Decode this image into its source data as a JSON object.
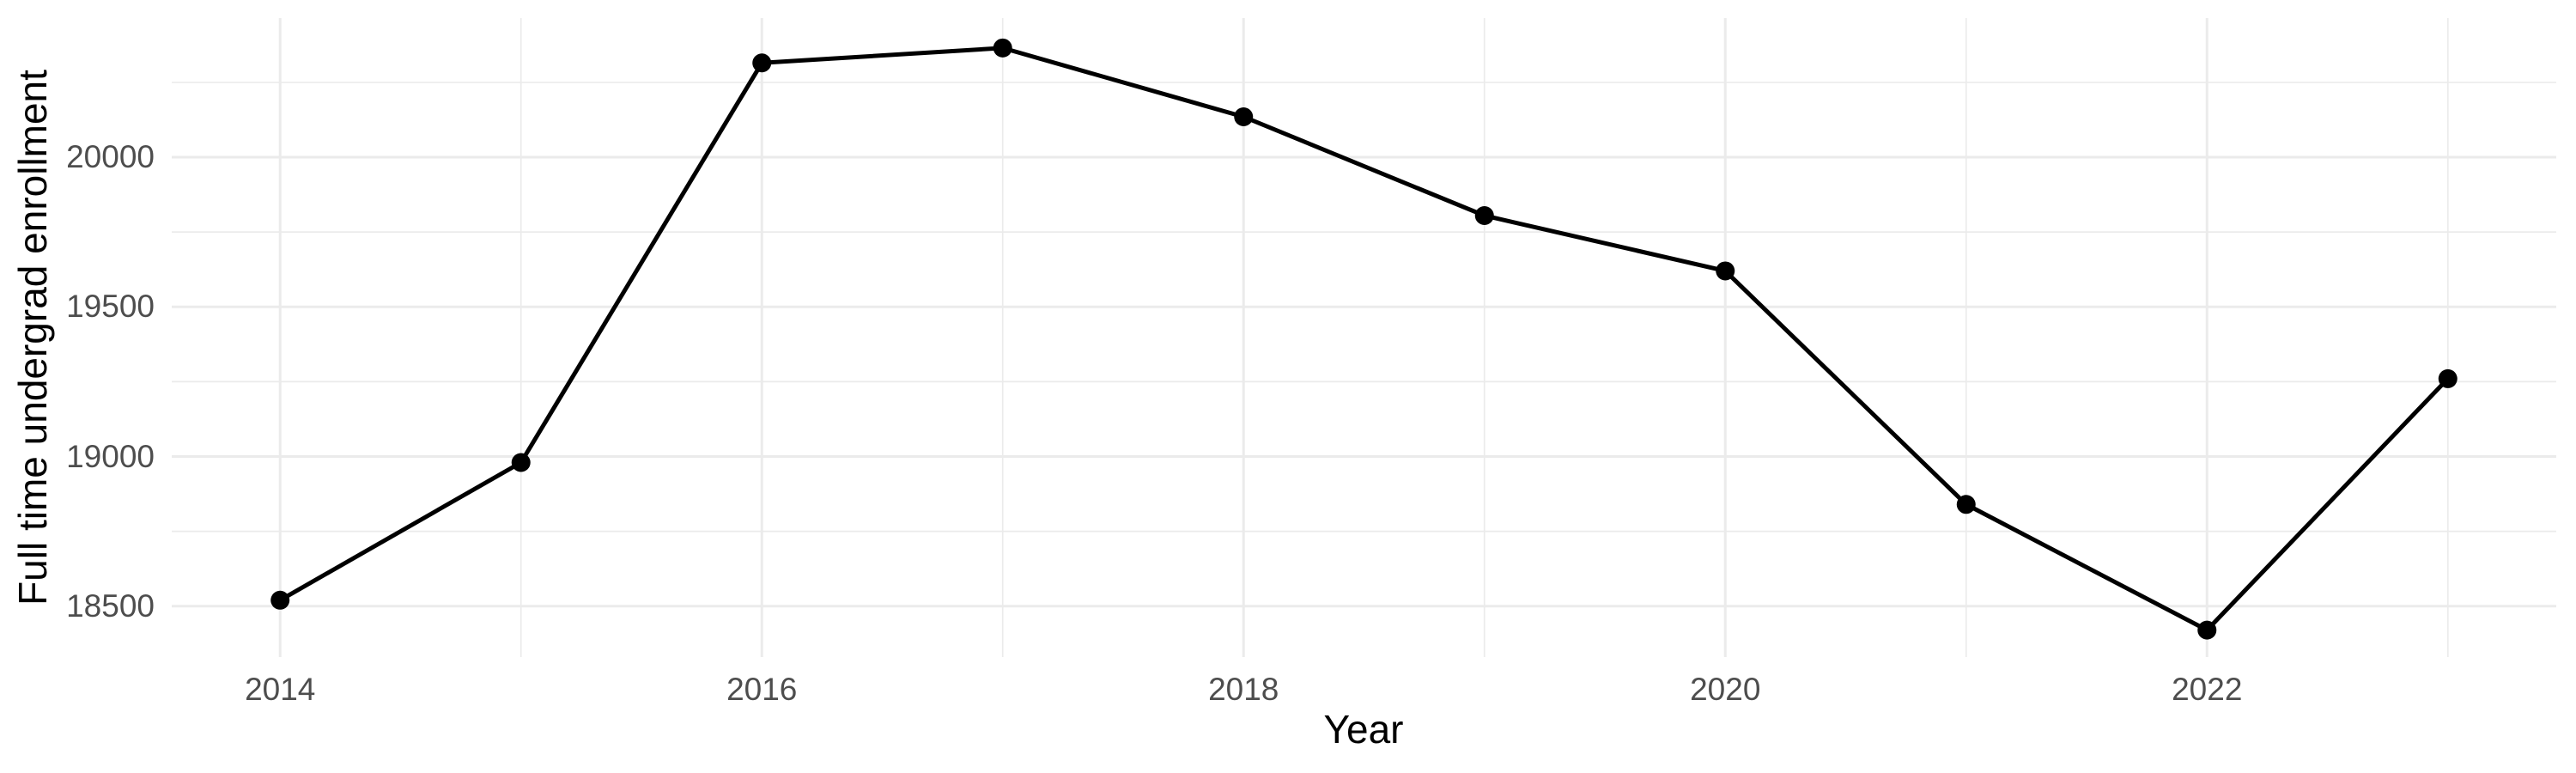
{
  "figure": {
    "background": "#FFFFFF"
  },
  "chart_data": {
    "type": "line",
    "title": "",
    "xlabel": "Year",
    "ylabel": "Full time undergrad enrollment",
    "x": [
      2014,
      2015,
      2016,
      2017,
      2018,
      2019,
      2020,
      2021,
      2022,
      2023
    ],
    "series": [
      {
        "name": "Full time undergrad enrollment",
        "values": [
          18520,
          18980,
          20315,
          20365,
          20135,
          19805,
          19620,
          18840,
          18420,
          19260
        ]
      }
    ],
    "x_ticks_major": [
      2014,
      2016,
      2018,
      2020,
      2022
    ],
    "x_tick_labels": [
      "2014",
      "2016",
      "2018",
      "2020",
      "2022"
    ],
    "x_ticks_minor": [
      2015,
      2017,
      2019,
      2021,
      2023
    ],
    "y_ticks_major": [
      18500,
      19000,
      19500,
      20000
    ],
    "y_tick_labels": [
      "18500",
      "19000",
      "19500",
      "20000"
    ],
    "y_ticks_minor": [
      18750,
      19250,
      19750,
      20250
    ],
    "xlim": [
      2013.55,
      2023.45
    ],
    "ylim": [
      18330,
      20465
    ],
    "grid": "major and minor gridlines, no axis lines, no tick marks",
    "legend": "none",
    "marker": "filled circle",
    "colors": {
      "line": "#000000",
      "point": "#000000",
      "grid_major": "#EBEBEB",
      "grid_minor": "#EBEBEB",
      "tick_label": "#4D4D4D",
      "axis_title": "#000000",
      "background": "#FFFFFF"
    }
  }
}
